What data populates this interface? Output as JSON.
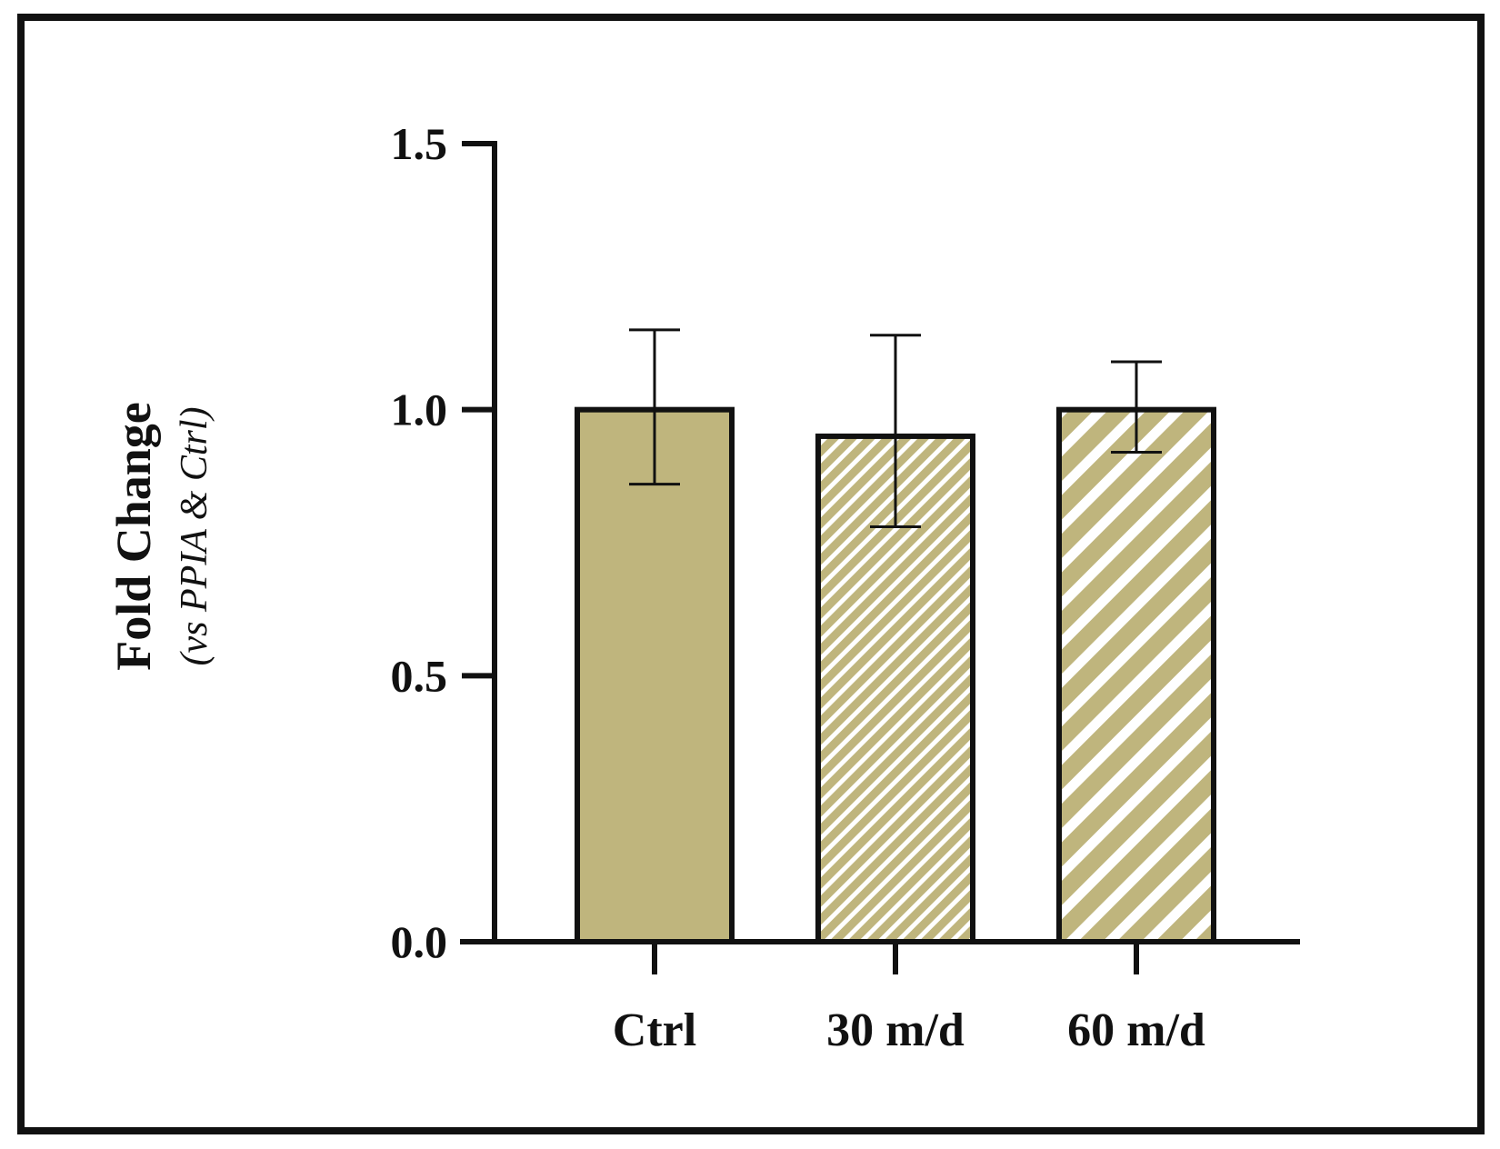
{
  "chart_data": {
    "type": "bar",
    "title": "",
    "xlabel": "",
    "ylabel": "Fold Change",
    "ylabel_sub": "(vs PPIA & Ctrl)",
    "categories": [
      "Ctrl",
      "30 m/d",
      "60 m/d"
    ],
    "values": [
      1.0,
      0.95,
      1.0
    ],
    "error_upper": [
      1.15,
      1.14,
      1.09
    ],
    "error_lower": [
      0.86,
      0.78,
      0.92
    ],
    "fill_patterns": [
      "solid",
      "hatch-fine",
      "hatch-wide"
    ],
    "ylim": [
      0,
      1.5
    ],
    "yticks": [
      0.0,
      0.5,
      1.0,
      1.5
    ],
    "ytick_labels": [
      "0.0",
      "0.5",
      "1.0",
      "1.5"
    ],
    "grid": false
  },
  "colors": {
    "bar_fill": "#bfb57d",
    "stroke": "#111111",
    "hatch_gap": "#ffffff",
    "frame": "#111111"
  }
}
